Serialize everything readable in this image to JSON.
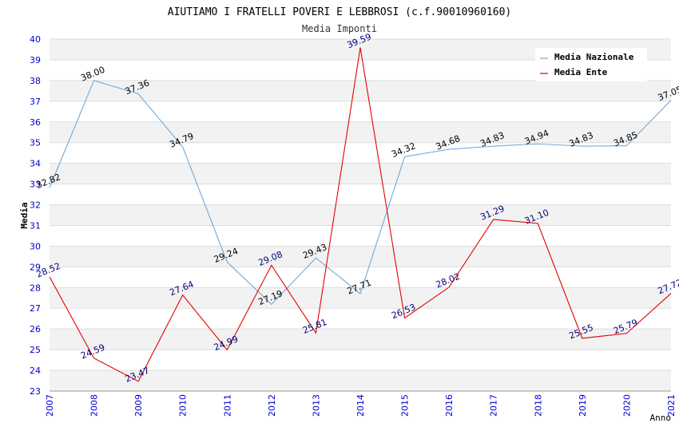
{
  "chart_data": {
    "type": "line",
    "title": "AIUTIAMO I FRATELLI POVERI E LEBBROSI (c.f.90010960160)",
    "subtitle": "Media Imponti",
    "xlabel": "Anno",
    "ylabel": "Media",
    "x": [
      "2007",
      "2008",
      "2009",
      "2010",
      "2011",
      "2012",
      "2013",
      "2014",
      "2015",
      "2016",
      "2017",
      "2018",
      "2019",
      "2020",
      "2021"
    ],
    "ylim": [
      23,
      40
    ],
    "yticks": [
      "23",
      "24",
      "25",
      "26",
      "27",
      "28",
      "29",
      "30",
      "31",
      "32",
      "33",
      "34",
      "35",
      "36",
      "37",
      "38",
      "39",
      "40"
    ],
    "grid": "horizontal banded",
    "legend_position": "top-right",
    "series": [
      {
        "name": "Media Nazionale",
        "color": "#6fa8dc",
        "label_color": "#000000",
        "values": [
          32.82,
          38.0,
          37.36,
          34.79,
          29.24,
          27.19,
          29.43,
          27.71,
          34.32,
          34.68,
          34.83,
          34.94,
          34.83,
          34.85,
          37.05
        ],
        "labels": [
          "32.82",
          "38.00",
          "37.36",
          "34.79",
          "29.24",
          "27.19",
          "29.43",
          "27.71",
          "34.32",
          "34.68",
          "34.83",
          "34.94",
          "34.83",
          "34.85",
          "37.05"
        ]
      },
      {
        "name": "Media Ente",
        "color": "#e60000",
        "label_color": "#00007a",
        "values": [
          28.52,
          24.59,
          23.47,
          27.64,
          24.99,
          29.08,
          25.81,
          39.59,
          26.53,
          28.02,
          31.29,
          31.1,
          25.55,
          25.79,
          27.72
        ],
        "labels": [
          "28.52",
          "24.59",
          "23.47",
          "27.64",
          "24.99",
          "29.08",
          "25.81",
          "39.59",
          "26.53",
          "28.02",
          "31.29",
          "31.10",
          "25.55",
          "25.79",
          "27.72"
        ]
      }
    ]
  }
}
